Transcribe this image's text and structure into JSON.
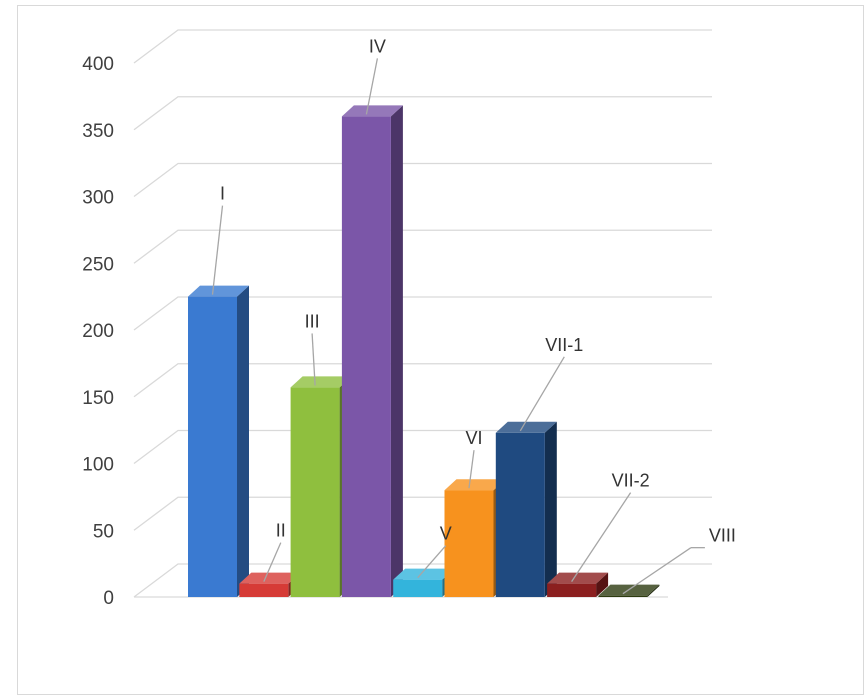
{
  "chart_data": {
    "type": "bar",
    "style": "3d-clustered-column",
    "categories": [
      "I",
      "II",
      "III",
      "IV",
      "V",
      "VI",
      "VII-1",
      "VII-2",
      "VIII"
    ],
    "values": [
      225,
      10,
      157,
      360,
      13,
      80,
      123,
      10,
      1
    ],
    "colors": [
      "#3a7ad1",
      "#d63b36",
      "#8fbf3e",
      "#7b56a8",
      "#33b4dc",
      "#f7921e",
      "#1f4a80",
      "#8b1f1f",
      "#2d3b10"
    ],
    "data_labels": [
      "I",
      "II",
      "III",
      "IV",
      "V",
      "VI",
      "VII-1",
      "VII-2",
      "VIII"
    ],
    "y_ticks": [
      0,
      50,
      100,
      150,
      200,
      250,
      300,
      350,
      400
    ],
    "ylim": [
      0,
      400
    ],
    "grid": true,
    "title": "",
    "xlabel": "",
    "ylabel": ""
  }
}
